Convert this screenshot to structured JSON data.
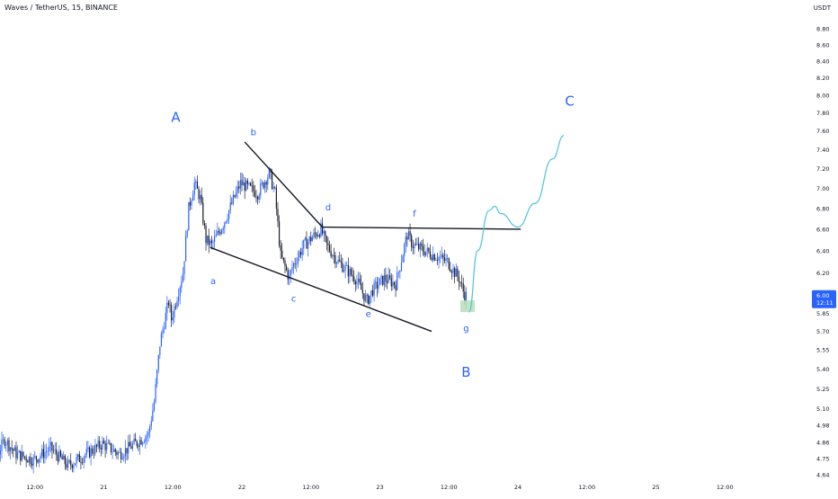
{
  "header": {
    "symbol": "Waves / TetherUS, 15, BINANCE",
    "currency": "USDT"
  },
  "colors": {
    "candle": "#2962ff",
    "candle_dark": "#1b1f2c",
    "trendline": "#131722",
    "wave_label": "#2962ff",
    "projection": "#4fc3d9",
    "target_zone": "#b7dfb9",
    "price_badge": "#2962ff",
    "axis_text": "#131722"
  },
  "chart_data": {
    "type": "candlestick",
    "symbol": "Waves / TetherUS",
    "interval": "15",
    "exchange": "BINANCE",
    "y_axis": {
      "unit": "USDT",
      "scale": "log",
      "range": [
        4.58,
        9.1
      ],
      "tick_labels": [
        "8.80",
        "8.60",
        "8.40",
        "8.20",
        "8.00",
        "7.80",
        "7.60",
        "7.40",
        "7.20",
        "7.00",
        "6.80",
        "6.60",
        "6.40",
        "6.20",
        "6.00",
        "5.85",
        "5.70",
        "5.55",
        "5.40",
        "5.25",
        "5.10",
        "4.98",
        "4.86",
        "4.75",
        "4.64"
      ]
    },
    "x_axis": {
      "tick_labels": [
        "12:00",
        "21",
        "12:00",
        "22",
        "12:00",
        "23",
        "12:00",
        "24",
        "12:00",
        "25",
        "12:00"
      ]
    },
    "last_price": "6.00",
    "countdown": "12:11",
    "price_path": [
      [
        "20 00:00",
        4.68
      ],
      [
        "20 03:00",
        4.72
      ],
      [
        "20 06:00",
        4.8
      ],
      [
        "20 07:00",
        4.88
      ],
      [
        "20 09:00",
        4.78
      ],
      [
        "20 12:00",
        4.74
      ],
      [
        "20 15:00",
        4.82
      ],
      [
        "20 18:00",
        4.7
      ],
      [
        "21 00:00",
        4.85
      ],
      [
        "21 03:00",
        4.78
      ],
      [
        "21 06:00",
        4.86
      ],
      [
        "21 08:00",
        4.92
      ],
      [
        "21 09:00",
        5.15
      ],
      [
        "21 10:00",
        5.6
      ],
      [
        "21 11:30",
        5.95
      ],
      [
        "21 12:00",
        5.8
      ],
      [
        "21 14:00",
        6.2
      ],
      [
        "21 15:00",
        6.8
      ],
      [
        "21 16:00",
        7.05
      ],
      [
        "21 17:00",
        6.9
      ],
      [
        "21 18:00",
        6.5
      ],
      [
        "21 19:00",
        6.45
      ],
      [
        "21 21:00",
        6.65
      ],
      [
        "22 00:00",
        7.05
      ],
      [
        "22 03:00",
        6.95
      ],
      [
        "22 05:00",
        7.15
      ],
      [
        "22 06:00",
        6.95
      ],
      [
        "22 07:00",
        6.35
      ],
      [
        "22 08:30",
        6.15
      ],
      [
        "22 09:00",
        6.25
      ],
      [
        "22 11:00",
        6.45
      ],
      [
        "22 14:00",
        6.6
      ],
      [
        "22 15:00",
        6.45
      ],
      [
        "22 17:00",
        6.3
      ],
      [
        "22 20:00",
        6.15
      ],
      [
        "22 21:00",
        6.05
      ],
      [
        "22 22:00",
        5.95
      ],
      [
        "22 23:00",
        6.05
      ],
      [
        "23 01:00",
        6.15
      ],
      [
        "23 03:00",
        6.1
      ],
      [
        "23 05:00",
        6.55
      ],
      [
        "23 06:00",
        6.45
      ],
      [
        "23 08:00",
        6.4
      ],
      [
        "23 10:00",
        6.35
      ],
      [
        "23 12:00",
        6.3
      ],
      [
        "23 14:00",
        6.15
      ],
      [
        "23 15:00",
        6.0
      ]
    ],
    "trendlines": [
      {
        "from": [
          "21 18:30",
          6.43
        ],
        "to": [
          "23 09:00",
          5.7
        ]
      },
      {
        "from": [
          "22 00:30",
          7.48
        ],
        "to": [
          "22 14:00",
          6.62
        ]
      },
      {
        "from": [
          "22 14:00",
          6.62
        ],
        "to": [
          "24 00:30",
          6.6
        ]
      }
    ],
    "projection_path": [
      [
        "23 15:30",
        5.86
      ],
      [
        "23 17:00",
        6.4
      ],
      [
        "23 19:00",
        6.78
      ],
      [
        "23 20:00",
        6.82
      ],
      [
        "23 21:00",
        6.75
      ],
      [
        "24 00:00",
        6.62
      ],
      [
        "24 03:00",
        6.85
      ],
      [
        "24 06:00",
        7.3
      ],
      [
        "24 08:00",
        7.55
      ]
    ],
    "target_zone": {
      "x_from": "23 14:00",
      "x_to": "23 16:30",
      "y_from": 5.86,
      "y_to": 5.96
    },
    "annotations": [
      {
        "label": "A",
        "at": [
          "21 12:30",
          7.7
        ],
        "size": "large"
      },
      {
        "label": "a",
        "at": [
          "21 19:00",
          6.1
        ],
        "size": "small"
      },
      {
        "label": "b",
        "at": [
          "22 02:00",
          7.55
        ],
        "size": "small"
      },
      {
        "label": "c",
        "at": [
          "22 09:00",
          5.95
        ],
        "size": "small"
      },
      {
        "label": "d",
        "at": [
          "22 15:00",
          6.78
        ],
        "size": "small"
      },
      {
        "label": "e",
        "at": [
          "22 22:00",
          5.82
        ],
        "size": "small"
      },
      {
        "label": "f",
        "at": [
          "23 06:00",
          6.72
        ],
        "size": "small"
      },
      {
        "label": "g",
        "at": [
          "23 15:00",
          5.7
        ],
        "size": "small"
      },
      {
        "label": "B",
        "at": [
          "23 15:00",
          5.34
        ],
        "size": "large"
      },
      {
        "label": "C",
        "at": [
          "24 09:00",
          7.88
        ],
        "size": "large"
      }
    ]
  }
}
